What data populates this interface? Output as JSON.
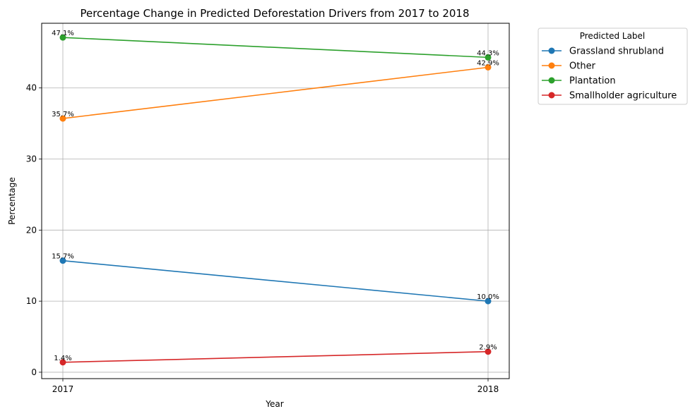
{
  "chart_data": {
    "type": "line",
    "title": "Percentage Change in Predicted Deforestation Drivers from 2017 to 2018",
    "xlabel": "Year",
    "ylabel": "Percentage",
    "categories": [
      "2017",
      "2018"
    ],
    "ylim": [
      -0.9,
      49.1
    ],
    "yticks": [
      0,
      10,
      20,
      30,
      40
    ],
    "grid": true,
    "legend": {
      "title": "Predicted Label",
      "placement": "outside-top-right"
    },
    "series": [
      {
        "name": "Grassland shrubland",
        "color": "#1f77b4",
        "values": [
          15.7,
          10.0
        ],
        "labels": [
          "15.7%",
          "10.0%"
        ]
      },
      {
        "name": "Other",
        "color": "#ff7f0e",
        "values": [
          35.7,
          42.9
        ],
        "labels": [
          "35.7%",
          "42.9%"
        ]
      },
      {
        "name": "Plantation",
        "color": "#2ca02c",
        "values": [
          47.1,
          44.3
        ],
        "labels": [
          "47.1%",
          "44.3%"
        ]
      },
      {
        "name": "Smallholder agriculture",
        "color": "#d62728",
        "values": [
          1.4,
          2.9
        ],
        "labels": [
          "1.4%",
          "2.9%"
        ]
      }
    ]
  }
}
